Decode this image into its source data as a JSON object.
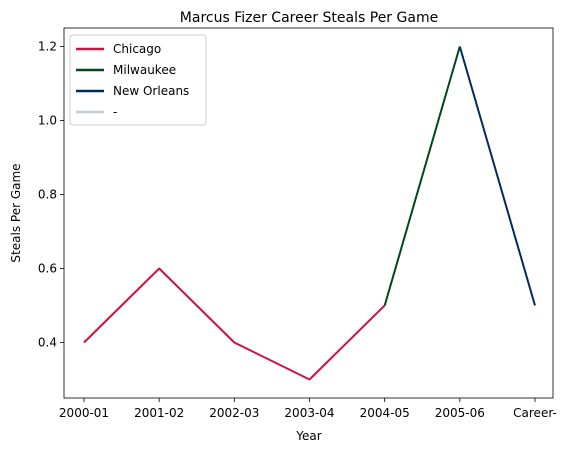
{
  "chart_data": {
    "type": "line",
    "title": "Marcus Fizer Career Steals Per Game",
    "xlabel": "Year",
    "ylabel": "Steals Per Game",
    "categories": [
      "2000-01",
      "2001-02",
      "2002-03",
      "2003-04",
      "2004-05",
      "2005-06",
      "Career-"
    ],
    "ylim": [
      0.25,
      1.25
    ],
    "yticks": [
      0.4,
      0.6,
      0.8,
      1.0,
      1.2
    ],
    "ytick_labels": [
      "0.4",
      "0.6",
      "0.8",
      "1.0",
      "1.2"
    ],
    "grid": false,
    "legend_position": "top-left",
    "series": [
      {
        "name": "Chicago",
        "color": "#ce1141",
        "x": [
          "2000-01",
          "2001-02",
          "2002-03",
          "2003-04",
          "2004-05"
        ],
        "values": [
          0.4,
          0.6,
          0.4,
          0.3,
          0.5
        ]
      },
      {
        "name": "Milwaukee",
        "color": "#00471b",
        "x": [
          "2004-05",
          "2005-06"
        ],
        "values": [
          0.5,
          1.2
        ]
      },
      {
        "name": "New Orleans",
        "color": "#002b5c",
        "x": [
          "2005-06",
          "Career-"
        ],
        "values": [
          1.2,
          0.5
        ]
      },
      {
        "name": "-",
        "color": "#c4ced4",
        "x": [],
        "values": []
      }
    ]
  }
}
